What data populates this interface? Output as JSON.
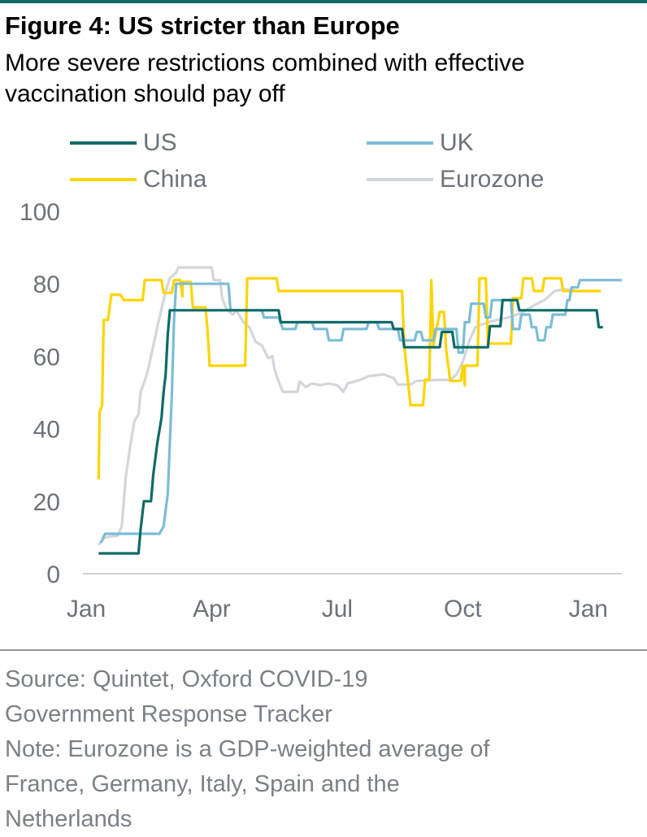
{
  "header": {
    "title": "Figure 4: US stricter than Europe",
    "subtitle": "More severe restrictions combined with effective vaccination should pay off"
  },
  "footer": {
    "source_lines": [
      "Source: Quintet, Oxford COVID-19",
      "Government Response Tracker"
    ],
    "note_lines": [
      "Note: Eurozone is a GDP-weighted average of",
      "France, Germany, Italy, Spain and the",
      "Netherlands"
    ]
  },
  "colors": {
    "accent": "#0f6a67",
    "US": "#0f6a67",
    "UK": "#7cbdd6",
    "China": "#ffd400",
    "Eurozone": "#d3d6da",
    "axis_text": "#6d7279"
  },
  "chart_data": {
    "type": "line",
    "title": "Figure 4: US stricter than Europe",
    "subtitle": "More severe restrictions combined with effective vaccination should pay off",
    "xlabel": "",
    "ylabel": "",
    "ylim": [
      0,
      100
    ],
    "xlim": [
      0,
      12.8
    ],
    "x_unit": "months since 1 Jan 2020 (Jan 2021 = 12)",
    "y_ticks": [
      0,
      20,
      40,
      60,
      80,
      100
    ],
    "x_ticks": [
      {
        "label": "Jan",
        "value": 0
      },
      {
        "label": "Apr",
        "value": 3
      },
      {
        "label": "Jul",
        "value": 6
      },
      {
        "label": "Oct",
        "value": 9
      },
      {
        "label": "Jan",
        "value": 12
      }
    ],
    "grid": false,
    "legend": "top",
    "series": [
      {
        "name": "US",
        "color": "#0f6a67",
        "points": [
          [
            0.3,
            5.6
          ],
          [
            1.25,
            5.6
          ],
          [
            1.3,
            12
          ],
          [
            1.38,
            20
          ],
          [
            1.55,
            20
          ],
          [
            1.6,
            27
          ],
          [
            1.7,
            36
          ],
          [
            1.8,
            43
          ],
          [
            1.85,
            50
          ],
          [
            1.9,
            55
          ],
          [
            1.95,
            66
          ],
          [
            2.0,
            72.7
          ],
          [
            4.6,
            72.7
          ],
          [
            4.65,
            69.4
          ],
          [
            7.3,
            69.4
          ],
          [
            7.35,
            67.5
          ],
          [
            7.55,
            67.5
          ],
          [
            7.6,
            62.5
          ],
          [
            8.45,
            62.5
          ],
          [
            8.5,
            66.7
          ],
          [
            8.75,
            66.7
          ],
          [
            8.8,
            62.5
          ],
          [
            9.6,
            62.5
          ],
          [
            9.65,
            68.3
          ],
          [
            9.9,
            68.3
          ],
          [
            9.95,
            75.5
          ],
          [
            10.3,
            75.5
          ],
          [
            10.35,
            72.7
          ],
          [
            12.2,
            72.7
          ],
          [
            12.25,
            68
          ],
          [
            12.35,
            68
          ]
        ]
      },
      {
        "name": "UK",
        "color": "#7cbdd6",
        "points": [
          [
            0.35,
            8.5
          ],
          [
            0.45,
            11
          ],
          [
            1.75,
            11
          ],
          [
            1.85,
            13
          ],
          [
            1.95,
            22
          ],
          [
            2.05,
            50
          ],
          [
            2.1,
            70
          ],
          [
            2.15,
            80
          ],
          [
            3.4,
            80
          ],
          [
            3.45,
            72.7
          ],
          [
            4.2,
            72.7
          ],
          [
            4.25,
            70.7
          ],
          [
            4.6,
            70.7
          ],
          [
            4.7,
            67.5
          ],
          [
            5.0,
            67.5
          ],
          [
            5.05,
            69.4
          ],
          [
            5.4,
            69.4
          ],
          [
            5.45,
            67.5
          ],
          [
            5.75,
            67.5
          ],
          [
            5.8,
            64.4
          ],
          [
            6.1,
            64.4
          ],
          [
            6.15,
            67.5
          ],
          [
            6.7,
            67.5
          ],
          [
            6.75,
            69.4
          ],
          [
            6.95,
            69.4
          ],
          [
            7.0,
            67.5
          ],
          [
            7.45,
            67.5
          ],
          [
            7.5,
            64.4
          ],
          [
            7.85,
            64.4
          ],
          [
            7.9,
            66.7
          ],
          [
            8.0,
            66.7
          ],
          [
            8.05,
            64.4
          ],
          [
            8.3,
            64.4
          ],
          [
            8.35,
            67.5
          ],
          [
            8.85,
            67.5
          ],
          [
            8.9,
            61
          ],
          [
            9.0,
            61
          ],
          [
            9.05,
            69.4
          ],
          [
            9.15,
            69.4
          ],
          [
            9.2,
            74.5
          ],
          [
            9.5,
            74.5
          ],
          [
            9.55,
            70.7
          ],
          [
            9.65,
            70.7
          ],
          [
            9.7,
            75.5
          ],
          [
            10.15,
            75.5
          ],
          [
            10.2,
            67.5
          ],
          [
            10.35,
            67.5
          ],
          [
            10.4,
            71.5
          ],
          [
            10.6,
            71.5
          ],
          [
            10.65,
            68
          ],
          [
            10.75,
            68
          ],
          [
            10.8,
            64.4
          ],
          [
            10.95,
            64.4
          ],
          [
            11.0,
            68
          ],
          [
            11.1,
            68
          ],
          [
            11.15,
            71.5
          ],
          [
            11.45,
            71.5
          ],
          [
            11.5,
            75.5
          ],
          [
            11.55,
            75.5
          ],
          [
            11.6,
            79
          ],
          [
            11.75,
            79
          ],
          [
            11.8,
            81
          ],
          [
            12.8,
            81
          ]
        ]
      },
      {
        "name": "China",
        "color": "#ffd400",
        "points": [
          [
            0.3,
            26
          ],
          [
            0.32,
            44.5
          ],
          [
            0.38,
            46.5
          ],
          [
            0.42,
            70
          ],
          [
            0.52,
            70
          ],
          [
            0.6,
            77
          ],
          [
            0.82,
            77
          ],
          [
            0.9,
            75.5
          ],
          [
            1.35,
            75.5
          ],
          [
            1.4,
            81
          ],
          [
            1.8,
            81
          ],
          [
            1.85,
            77.5
          ],
          [
            2.05,
            77.5
          ],
          [
            2.1,
            81
          ],
          [
            2.25,
            81
          ],
          [
            2.3,
            76.5
          ],
          [
            2.3,
            80.5
          ],
          [
            2.5,
            80.5
          ],
          [
            2.55,
            73.5
          ],
          [
            2.85,
            73.5
          ],
          [
            2.9,
            67.5
          ],
          [
            2.95,
            57.4
          ],
          [
            3.8,
            57.4
          ],
          [
            3.85,
            81.5
          ],
          [
            4.55,
            81.5
          ],
          [
            4.6,
            78
          ],
          [
            7.55,
            78
          ],
          [
            7.6,
            63
          ],
          [
            7.75,
            46.5
          ],
          [
            8.05,
            46.5
          ],
          [
            8.1,
            53.5
          ],
          [
            8.2,
            53.5
          ],
          [
            8.25,
            81
          ],
          [
            8.3,
            63
          ],
          [
            8.45,
            72.2
          ],
          [
            8.55,
            72.2
          ],
          [
            8.6,
            62
          ],
          [
            8.7,
            53.2
          ],
          [
            8.95,
            53.2
          ],
          [
            9.0,
            57.4
          ],
          [
            9.05,
            52
          ],
          [
            9.05,
            57.4
          ],
          [
            9.35,
            57.4
          ],
          [
            9.4,
            81.5
          ],
          [
            9.55,
            81.5
          ],
          [
            9.6,
            63.5
          ],
          [
            10.15,
            63.5
          ],
          [
            10.2,
            76
          ],
          [
            10.4,
            76
          ],
          [
            10.45,
            81.5
          ],
          [
            10.65,
            81.5
          ],
          [
            10.7,
            78
          ],
          [
            10.9,
            78
          ],
          [
            10.95,
            81.5
          ],
          [
            11.35,
            81.5
          ],
          [
            11.4,
            78
          ],
          [
            12.3,
            78
          ]
        ]
      },
      {
        "name": "Eurozone",
        "color": "#d3d6da",
        "points": [
          [
            0.3,
            8
          ],
          [
            0.45,
            10
          ],
          [
            0.75,
            10.5
          ],
          [
            0.85,
            13
          ],
          [
            0.95,
            27
          ],
          [
            1.05,
            35
          ],
          [
            1.15,
            42
          ],
          [
            1.25,
            44
          ],
          [
            1.3,
            50
          ],
          [
            1.45,
            55
          ],
          [
            1.55,
            60
          ],
          [
            1.7,
            68
          ],
          [
            1.8,
            73
          ],
          [
            1.9,
            78
          ],
          [
            2.0,
            81.5
          ],
          [
            2.15,
            83
          ],
          [
            2.2,
            84.5
          ],
          [
            2.75,
            84.5
          ],
          [
            3.0,
            84.5
          ],
          [
            3.05,
            81
          ],
          [
            3.2,
            81
          ],
          [
            3.25,
            76
          ],
          [
            3.35,
            73
          ],
          [
            3.5,
            71.5
          ],
          [
            3.6,
            72.5
          ],
          [
            3.75,
            69.5
          ],
          [
            3.9,
            68
          ],
          [
            4.05,
            64
          ],
          [
            4.2,
            63
          ],
          [
            4.35,
            59.5
          ],
          [
            4.45,
            60
          ],
          [
            4.5,
            56.5
          ],
          [
            4.6,
            53
          ],
          [
            4.7,
            50.2
          ],
          [
            5.05,
            50.2
          ],
          [
            5.1,
            53
          ],
          [
            5.25,
            51.5
          ],
          [
            5.4,
            52.5
          ],
          [
            5.6,
            52
          ],
          [
            5.8,
            52.5
          ],
          [
            6.0,
            52
          ],
          [
            6.15,
            50.2
          ],
          [
            6.25,
            52.5
          ],
          [
            6.55,
            53.5
          ],
          [
            6.75,
            54.5
          ],
          [
            7.1,
            55
          ],
          [
            7.35,
            54
          ],
          [
            7.45,
            52.2
          ],
          [
            7.75,
            52.2
          ],
          [
            7.9,
            53.2
          ],
          [
            8.5,
            53.5
          ],
          [
            8.7,
            53.5
          ],
          [
            8.85,
            55
          ],
          [
            9.0,
            58.5
          ],
          [
            9.15,
            64
          ],
          [
            9.3,
            68
          ],
          [
            9.5,
            69
          ],
          [
            9.8,
            70
          ],
          [
            10.1,
            70.7
          ],
          [
            10.4,
            72
          ],
          [
            10.7,
            74
          ],
          [
            10.95,
            75.5
          ],
          [
            11.2,
            78
          ],
          [
            11.45,
            78.5
          ],
          [
            11.7,
            78
          ],
          [
            12.0,
            78
          ],
          [
            12.3,
            78
          ]
        ]
      }
    ]
  }
}
